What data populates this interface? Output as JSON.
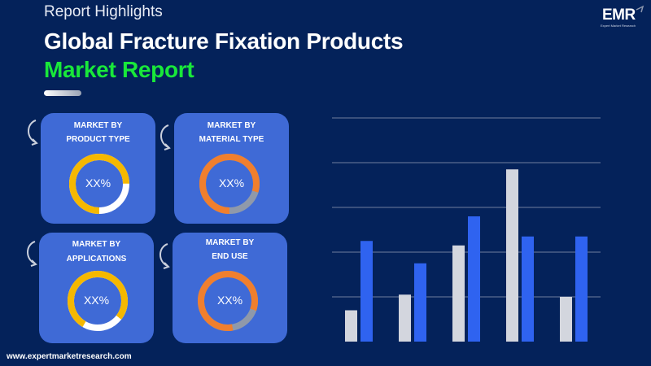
{
  "header": {
    "kicker": "Report Highlights",
    "title_line1": "Global Fracture Fixation Products",
    "title_line2": "Market Report"
  },
  "logo": {
    "text": "EMR",
    "tagline": "Expert Market Research"
  },
  "cards": [
    {
      "line1": "MARKET BY",
      "line2": "PRODUCT TYPE",
      "value": "XX%",
      "ring_color": "#f5b800"
    },
    {
      "line1": "MARKET BY",
      "line2": "MATERIAL TYPE",
      "value": "XX%",
      "ring_color": "#f07f2e"
    },
    {
      "line1": "MARKET BY",
      "line2": "APPLICATIONS",
      "value": "XX%",
      "ring_color": "#f5b800"
    },
    {
      "line1": "MARKET BY",
      "line2": "END USE",
      "value": "XX%",
      "ring_color": "#f07f2e"
    }
  ],
  "footer": {
    "url": "www.expertmarketresearch.com"
  },
  "colors": {
    "background": "#04225a",
    "title_accent": "#19e83a",
    "card": "#3f6ad6",
    "series_gray": "#d3d6de",
    "series_blue": "#2f63f0"
  },
  "chart_data": {
    "type": "bar",
    "categories": [
      "",
      "",
      "",
      "",
      ""
    ],
    "series": [
      {
        "values": [
          0.7,
          1.05,
          2.15,
          3.85,
          1.0
        ]
      },
      {
        "values": [
          2.25,
          1.75,
          2.8,
          2.35,
          2.35
        ]
      }
    ],
    "ylim": [
      0,
      5
    ],
    "grid": true,
    "xlabel": "",
    "ylabel": ""
  }
}
